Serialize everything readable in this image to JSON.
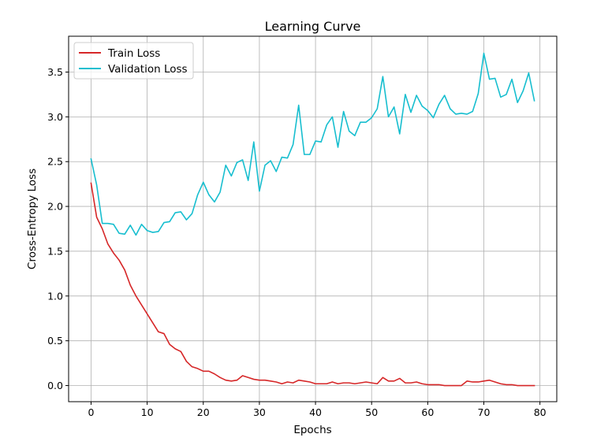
{
  "chart_data": {
    "type": "line",
    "title": "Learning Curve",
    "xlabel": "Epochs",
    "ylabel": "Cross-Entropy Loss",
    "xlim": [
      -4,
      83
    ],
    "ylim": [
      -0.18,
      3.9
    ],
    "xticks": [
      0,
      10,
      20,
      30,
      40,
      50,
      60,
      70,
      80
    ],
    "yticks": [
      0.0,
      0.5,
      1.0,
      1.5,
      2.0,
      2.5,
      3.0,
      3.5
    ],
    "grid": true,
    "legend": "upper-left",
    "series": [
      {
        "name": "Train Loss",
        "color": "#d62728",
        "x": [
          0,
          1,
          2,
          3,
          4,
          5,
          6,
          7,
          8,
          9,
          10,
          11,
          12,
          13,
          14,
          15,
          16,
          17,
          18,
          19,
          20,
          21,
          22,
          23,
          24,
          25,
          26,
          27,
          28,
          29,
          30,
          31,
          32,
          33,
          34,
          35,
          36,
          37,
          38,
          39,
          40,
          41,
          42,
          43,
          44,
          45,
          46,
          47,
          48,
          49,
          50,
          51,
          52,
          53,
          54,
          55,
          56,
          57,
          58,
          59,
          60,
          61,
          62,
          63,
          64,
          65,
          66,
          67,
          68,
          69,
          70,
          71,
          72,
          73,
          74,
          75,
          76,
          77,
          78,
          79
        ],
        "values": [
          2.26,
          1.88,
          1.75,
          1.58,
          1.48,
          1.4,
          1.29,
          1.12,
          1.0,
          0.9,
          0.8,
          0.7,
          0.6,
          0.58,
          0.46,
          0.41,
          0.38,
          0.27,
          0.21,
          0.19,
          0.16,
          0.16,
          0.13,
          0.09,
          0.06,
          0.05,
          0.06,
          0.11,
          0.09,
          0.07,
          0.06,
          0.06,
          0.05,
          0.04,
          0.02,
          0.04,
          0.03,
          0.06,
          0.05,
          0.04,
          0.02,
          0.02,
          0.02,
          0.04,
          0.02,
          0.03,
          0.03,
          0.02,
          0.03,
          0.04,
          0.03,
          0.02,
          0.09,
          0.05,
          0.05,
          0.08,
          0.03,
          0.03,
          0.04,
          0.02,
          0.01,
          0.01,
          0.01,
          0.0,
          0.0,
          0.0,
          0.0,
          0.05,
          0.04,
          0.04,
          0.05,
          0.06,
          0.04,
          0.02,
          0.01,
          0.01,
          0.0,
          0.0,
          0.0,
          0.0
        ]
      },
      {
        "name": "Validation Loss",
        "color": "#17becf",
        "x": [
          0,
          1,
          2,
          3,
          4,
          5,
          6,
          7,
          8,
          9,
          10,
          11,
          12,
          13,
          14,
          15,
          16,
          17,
          18,
          19,
          20,
          21,
          22,
          23,
          24,
          25,
          26,
          27,
          28,
          29,
          30,
          31,
          32,
          33,
          34,
          35,
          36,
          37,
          38,
          39,
          40,
          41,
          42,
          43,
          44,
          45,
          46,
          47,
          48,
          49,
          50,
          51,
          52,
          53,
          54,
          55,
          56,
          57,
          58,
          59,
          60,
          61,
          62,
          63,
          64,
          65,
          66,
          67,
          68,
          69,
          70,
          71,
          72,
          73,
          74,
          75,
          76,
          77,
          78,
          79
        ],
        "values": [
          2.53,
          2.24,
          1.81,
          1.81,
          1.8,
          1.7,
          1.69,
          1.79,
          1.68,
          1.8,
          1.73,
          1.71,
          1.72,
          1.82,
          1.83,
          1.93,
          1.94,
          1.85,
          1.92,
          2.13,
          2.27,
          2.13,
          2.05,
          2.16,
          2.46,
          2.34,
          2.49,
          2.52,
          2.29,
          2.72,
          2.17,
          2.46,
          2.51,
          2.39,
          2.55,
          2.54,
          2.69,
          3.13,
          2.58,
          2.58,
          2.73,
          2.72,
          2.91,
          3.0,
          2.66,
          3.06,
          2.84,
          2.79,
          2.94,
          2.94,
          2.99,
          3.09,
          3.45,
          3.0,
          3.11,
          2.81,
          3.25,
          3.05,
          3.24,
          3.12,
          3.07,
          2.99,
          3.14,
          3.24,
          3.09,
          3.03,
          3.04,
          3.03,
          3.06,
          3.26,
          3.71,
          3.42,
          3.43,
          3.22,
          3.25,
          3.42,
          3.16,
          3.29,
          3.49,
          3.18
        ]
      }
    ]
  }
}
